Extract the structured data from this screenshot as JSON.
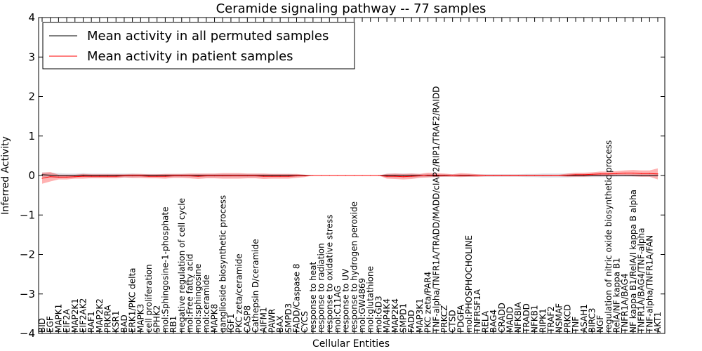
{
  "chart_data": {
    "type": "line",
    "title": "Ceramide signaling pathway -- 77 samples",
    "xlabel": "Cellular Entities",
    "ylabel": "Inferred Activity",
    "ylim": [
      -4,
      4
    ],
    "yticks": [
      -4,
      -3,
      -2,
      -1,
      0,
      1,
      2,
      3,
      4
    ],
    "legend_position": "top-left",
    "categories": [
      "BID",
      "EGF",
      "MAPK1",
      "EIF2A",
      "MAP2K1",
      "EIF2AK2",
      "RAF1",
      "MAP2K2",
      "PRKRA",
      "KSR1",
      "BAD",
      "ERK1/PKC delta",
      "MAPK3",
      "cell proliferation",
      "SPHK2",
      "mol:Sphingosine-1-phosphate",
      "RB1",
      "negative regulation of cell cycle",
      "mol:Free fatty acid",
      "mol:sphingosine",
      "mol:ceramide",
      "MAPK8",
      "ganglioside biosynthetic process",
      "IGF1",
      "PKC zeta/ceramide",
      "CASP8",
      "Cathepsin D/ceramide",
      "AIFM1",
      "PAWR",
      "BAX",
      "SMPD3",
      "FADD/Caspase 8",
      "CYCS",
      "response to heat",
      "response to radiation",
      "response to oxidative stress",
      "mol:C11AG",
      "response to UV",
      "response to hydrogen peroxide",
      "mol:GW4869",
      "mol:glutathione",
      "mol:GD3",
      "MAP4K4",
      "MAP2K4",
      "SMPD1",
      "FADD",
      "MAP3K1",
      "PKC zeta/PAR4",
      "TNF-alpha/TNFR1A/TRADD/MADD/cIAP2/RIP1/TRAF2/RAIDD",
      "PRKCZ",
      "CTSD",
      "PDGFA",
      "mol:PHOSPHOCHOLINE",
      "TNFRSF1A",
      "RELA",
      "BAG4",
      "CRADD",
      "MADD",
      "NFKBIA",
      "TRADD",
      "NFKB1",
      "RIPK1",
      "TRAF2",
      "NSMAF",
      "PRKCD",
      "TNF",
      "ASAH1",
      "BIRC3",
      "NGF",
      "regulation of nitric oxide biosynthetic process",
      "RelA/NF kappa B1",
      "TNFR1A/BAG4",
      "NF kappa B1/RelA/I kappa B alpha",
      "TNFR1A/BAG4/TNF-alpha",
      "TNF-alpha/TNFR1A/FAN",
      "AKT1"
    ],
    "series": [
      {
        "name": "Mean activity in all permuted samples",
        "color": "#000000",
        "values": [
          0.02,
          0.01,
          0.0,
          0.0,
          0.0,
          0.01,
          0.0,
          0.0,
          0.0,
          0.0,
          0.0,
          0.0,
          0.0,
          0.0,
          0.0,
          0.0,
          0.0,
          0.0,
          0.0,
          0.0,
          0.0,
          0.0,
          0.0,
          0.0,
          0.0,
          0.0,
          0.0,
          0.0,
          0.0,
          0.0,
          0.0,
          0.0,
          0.0,
          0.0,
          0.0,
          0.0,
          0.0,
          0.0,
          0.0,
          0.0,
          0.0,
          0.0,
          0.0,
          0.0,
          0.0,
          0.0,
          0.0,
          0.0,
          0.0,
          0.0,
          0.0,
          0.0,
          0.0,
          0.0,
          0.0,
          0.0,
          0.0,
          0.0,
          0.0,
          0.0,
          0.0,
          0.0,
          0.0,
          0.0,
          0.0,
          0.0,
          0.0,
          0.0,
          0.0,
          0.0,
          0.0,
          0.0,
          0.0,
          0.0,
          0.0,
          0.0
        ],
        "spread": [
          0.06,
          0.06,
          0.06,
          0.05,
          0.05,
          0.05,
          0.05,
          0.05,
          0.05,
          0.05,
          0.05,
          0.05,
          0.04,
          0.04,
          0.04,
          0.04,
          0.04,
          0.04,
          0.04,
          0.04,
          0.04,
          0.04,
          0.04,
          0.04,
          0.04,
          0.04,
          0.04,
          0.04,
          0.04,
          0.04,
          0.04,
          0.03,
          0.02,
          0.0,
          0.0,
          0.0,
          0.0,
          0.0,
          0.0,
          0.0,
          0.0,
          0.0,
          0.05,
          0.05,
          0.05,
          0.05,
          0.04,
          0.04,
          0.03,
          0.03,
          0.03,
          0.03,
          0.03,
          0.03,
          0.03,
          0.03,
          0.03,
          0.03,
          0.03,
          0.04,
          0.04,
          0.05,
          0.05,
          0.05,
          0.05,
          0.04,
          0.04,
          0.04,
          0.04,
          0.04,
          0.03,
          0.03,
          0.03,
          0.03,
          0.03,
          0.03
        ]
      },
      {
        "name": "Mean activity in patient samples",
        "color": "#ff0000",
        "values": [
          -0.07,
          -0.03,
          -0.04,
          -0.04,
          -0.03,
          -0.02,
          -0.02,
          -0.02,
          -0.02,
          -0.02,
          -0.01,
          -0.01,
          -0.01,
          -0.02,
          -0.02,
          -0.02,
          -0.01,
          -0.01,
          -0.01,
          -0.02,
          -0.01,
          -0.01,
          -0.01,
          -0.01,
          -0.01,
          -0.01,
          -0.01,
          -0.02,
          -0.02,
          -0.02,
          -0.02,
          -0.01,
          -0.01,
          0.0,
          0.0,
          0.0,
          0.0,
          0.0,
          0.0,
          0.0,
          0.0,
          0.0,
          -0.02,
          -0.02,
          -0.03,
          -0.02,
          -0.01,
          0.01,
          0.01,
          0.01,
          0.0,
          0.01,
          0.01,
          0.0,
          0.0,
          0.0,
          0.0,
          0.0,
          0.0,
          0.0,
          0.0,
          0.0,
          0.0,
          0.0,
          0.01,
          0.02,
          0.02,
          0.03,
          0.04,
          0.04,
          0.05,
          0.06,
          0.06,
          0.05,
          0.05,
          0.04
        ],
        "spread": [
          0.14,
          0.12,
          0.06,
          0.06,
          0.05,
          0.06,
          0.05,
          0.05,
          0.05,
          0.05,
          0.04,
          0.05,
          0.05,
          0.05,
          0.05,
          0.06,
          0.05,
          0.05,
          0.06,
          0.07,
          0.06,
          0.06,
          0.07,
          0.07,
          0.07,
          0.06,
          0.06,
          0.07,
          0.06,
          0.06,
          0.06,
          0.05,
          0.03,
          0.0,
          0.0,
          0.0,
          0.0,
          0.0,
          0.0,
          0.0,
          0.0,
          0.0,
          0.06,
          0.07,
          0.07,
          0.07,
          0.05,
          0.06,
          0.05,
          0.04,
          0.03,
          0.05,
          0.04,
          0.03,
          0.02,
          0.02,
          0.02,
          0.02,
          0.02,
          0.02,
          0.02,
          0.02,
          0.02,
          0.02,
          0.04,
          0.05,
          0.05,
          0.05,
          0.06,
          0.06,
          0.06,
          0.07,
          0.08,
          0.08,
          0.08,
          0.14
        ]
      }
    ]
  }
}
